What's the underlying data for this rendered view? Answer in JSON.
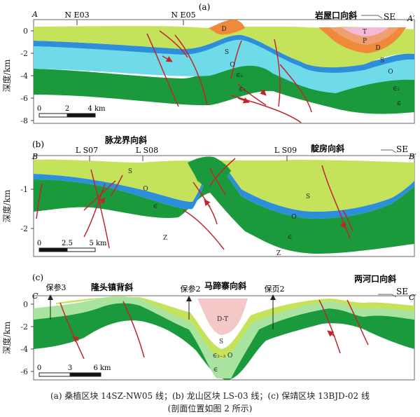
{
  "panels": [
    {
      "label": "(a)",
      "end_left": "A",
      "end_right": "A′",
      "y_axis_label": "深度/km",
      "y_ticks": [
        "0",
        "-2",
        "-4",
        "-6",
        "-8"
      ],
      "wells": [
        "N E03",
        "N E05"
      ],
      "fold_names": [
        "岩屋口向斜"
      ],
      "direction": "SE",
      "unit_labels": [
        "D",
        "T",
        "P",
        "D",
        "S",
        "S",
        "O",
        "O",
        "∈₂",
        "∈₂",
        "∈₁",
        "∈"
      ],
      "scale_ticks": [
        "0",
        "2",
        "4 km"
      ]
    },
    {
      "label": "(b)",
      "end_left": "B",
      "end_right": "B′",
      "y_axis_label": "深度/km",
      "y_ticks": [
        "-1",
        "-2"
      ],
      "wells": [
        "L S07",
        "L S08",
        "L S09"
      ],
      "fold_names": [
        "脉龙界向斜",
        "靛房向斜"
      ],
      "direction": "SE",
      "unit_labels": [
        "S",
        "O",
        "∈",
        "S",
        "O",
        "∈",
        "Z",
        "Z"
      ],
      "scale_ticks": [
        "0",
        "2.5",
        "5 km"
      ]
    },
    {
      "label": "(c)",
      "end_left": "C",
      "end_right": "C′",
      "y_axis_label": "深度/km",
      "y_ticks": [
        "0",
        "-2",
        "-4",
        "-6"
      ],
      "wells": [
        "保参3",
        "保参2",
        "保页2"
      ],
      "fold_names": [
        "隆头镇背斜",
        "马蹄寨向斜",
        "两河口向斜"
      ],
      "direction": "SE",
      "unit_labels": [
        "D-T",
        "S",
        "∈₂₋₃ O",
        "∈"
      ],
      "scale_ticks": [
        "0",
        "3",
        "6 km"
      ]
    }
  ],
  "caption": {
    "line1": "(a) 桑植区块 14SZ-NW05 线；(b) 龙山区块 LS-03 线；(c) 保靖区块 13BJD-02 线",
    "line2": "(剖面位置如图 2 所示)"
  },
  "colors": {
    "S": "#c5e35a",
    "O": "#2d8fd9",
    "Cm_upper": "#6fdbe8",
    "Cm": "#1a9a3c",
    "Cm_c": "#a9e3a0",
    "D": "#f08a3a",
    "P": "#f0a070",
    "T": "#f5b8d8",
    "DT": "#f5c8c8",
    "fault": "#c0262e"
  }
}
